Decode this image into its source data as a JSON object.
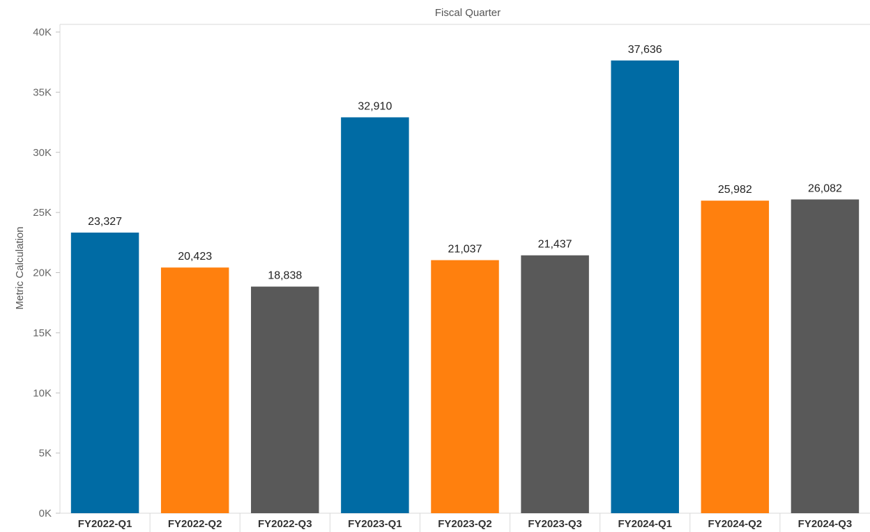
{
  "chart_data": {
    "type": "bar",
    "title": "",
    "xlabel": "Fiscal Quarter",
    "ylabel": "Metric Calculation",
    "ylim": [
      0,
      40000
    ],
    "yticks": [
      0,
      5000,
      10000,
      15000,
      20000,
      25000,
      30000,
      35000,
      40000
    ],
    "ytick_labels": [
      "0K",
      "5K",
      "10K",
      "15K",
      "20K",
      "25K",
      "30K",
      "35K",
      "40K"
    ],
    "grid": false,
    "legend": "none",
    "categories": [
      "FY2022-Q1",
      "FY2022-Q2",
      "FY2022-Q3",
      "FY2023-Q1",
      "FY2023-Q2",
      "FY2023-Q3",
      "FY2024-Q1",
      "FY2024-Q2",
      "FY2024-Q3"
    ],
    "values": [
      23327,
      20423,
      18838,
      32910,
      21037,
      21437,
      37636,
      25982,
      26082
    ],
    "data_labels": [
      "23,327",
      "20,423",
      "18,838",
      "32,910",
      "21,037",
      "21,437",
      "37,636",
      "25,982",
      "26,082"
    ],
    "colors": [
      "#006ba4",
      "#ff800e",
      "#595959",
      "#006ba4",
      "#ff800e",
      "#595959",
      "#006ba4",
      "#ff800e",
      "#595959"
    ]
  }
}
